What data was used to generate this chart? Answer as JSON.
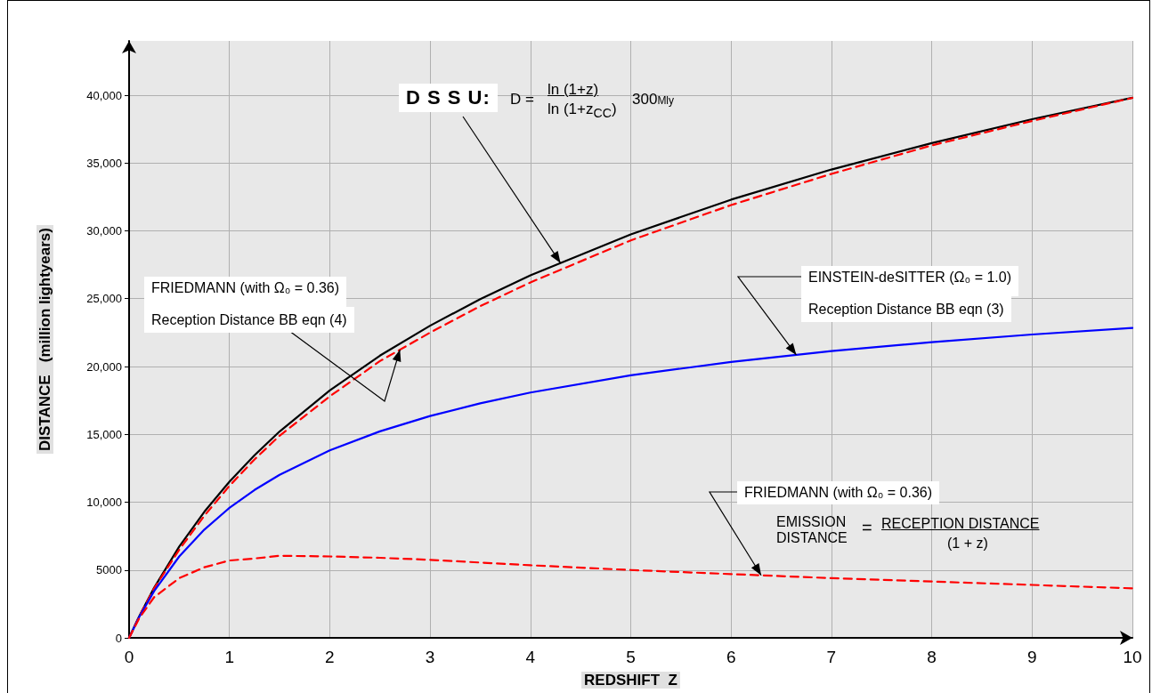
{
  "chart_data": {
    "type": "line",
    "xlabel": "REDSHIFT  Z",
    "ylabel": "DISTANCE   (million lightyears)",
    "x": [
      0,
      0.1,
      0.25,
      0.5,
      0.75,
      1,
      1.25,
      1.5,
      2,
      2.5,
      3,
      3.5,
      4,
      5,
      6,
      7,
      8,
      9,
      10
    ],
    "series": [
      {
        "color": "#000000",
        "line_style": "solid",
        "values": [
          0,
          1580,
          3700,
          6730,
          9290,
          11510,
          13460,
          15210,
          18240,
          20800,
          23010,
          24970,
          26720,
          29740,
          32300,
          34520,
          36470,
          38230,
          39810
        ]
      },
      {
        "color": "#ff0000",
        "line_style": "dashed",
        "values": [
          0,
          1570,
          3650,
          6500,
          9000,
          11200,
          13150,
          14900,
          17800,
          20400,
          22500,
          24450,
          26200,
          29300,
          31900,
          34200,
          36300,
          38100,
          39800
        ]
      },
      {
        "color": "#0000ff",
        "line_style": "solid",
        "values": [
          0,
          1520,
          3450,
          6000,
          7980,
          9580,
          10900,
          12020,
          13820,
          15220,
          16350,
          17290,
          18080,
          19350,
          20340,
          21140,
          21800,
          22360,
          22840
        ]
      },
      {
        "color": "#ff0000",
        "line_style": "dashed",
        "values": [
          0,
          1430,
          3000,
          4400,
          5200,
          5700,
          5850,
          6050,
          6000,
          5900,
          5750,
          5550,
          5350,
          5000,
          4700,
          4400,
          4150,
          3900,
          3650
        ]
      }
    ],
    "xlim": [
      0,
      10
    ],
    "xticks": [
      0,
      1,
      2,
      3,
      4,
      5,
      6,
      7,
      8,
      9,
      10
    ],
    "ylim": [
      0,
      44000
    ],
    "yticks": [
      0,
      5000,
      {
        "value": 10000,
        "label": "10,000"
      },
      {
        "value": 15000,
        "label": "15,000"
      },
      {
        "value": 20000,
        "label": "20,000"
      },
      {
        "value": 25000,
        "label": "25,000"
      },
      {
        "value": 30000,
        "label": "30,000"
      },
      {
        "value": 35000,
        "label": "35,000"
      },
      {
        "value": 40000,
        "label": "40,000"
      }
    ],
    "grid": true,
    "marker": "none",
    "annotations": [
      {
        "text": "D S S U:",
        "x": 4.3,
        "y": 27630
      },
      "D =",
      "ln (1+z)",
      "ln (1+z$_{CC}$)",
      "300Mly",
      "FRIEDMANN  (with Ω₀ = 0.36)",
      {
        "text": "Reception Distance BB eqn (4)",
        "x": 2.7,
        "y": 21240
      },
      {
        "text": "EINSTEIN-deSITTER (Ω₀ = 1.0)",
        "x": 6.65,
        "y": 20860
      },
      "Reception Distance BB eqn (3)",
      {
        "text": "FRIEDMANN  (with Ω₀ = 0.36)",
        "x": 6.3,
        "y": 4610
      },
      "EMISSION DISTANCE",
      "=",
      "RECEPTION DISTANCE",
      "(1 + z)"
    ]
  }
}
